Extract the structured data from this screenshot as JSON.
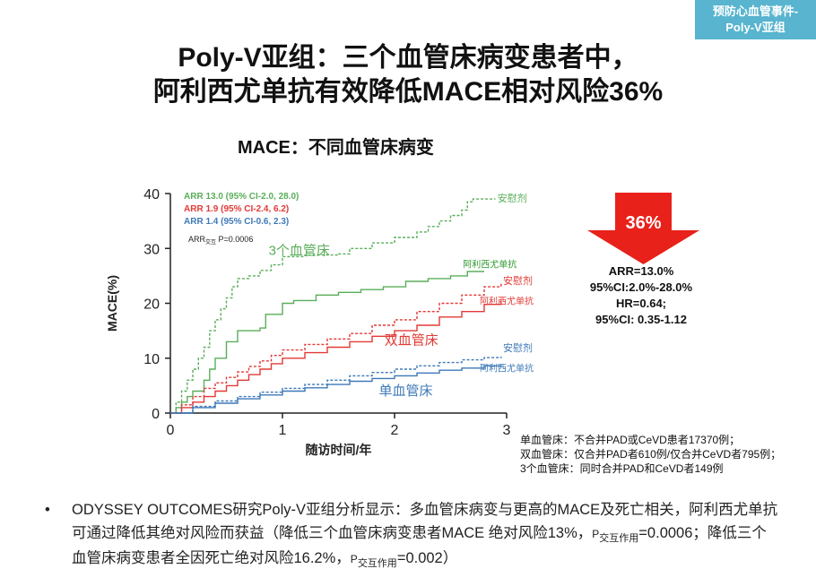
{
  "corner_tag": {
    "line1": "预防心血管事件-",
    "line2": "Poly-V亚组"
  },
  "title": {
    "line1": "Poly-V亚组：三个血管床病变患者中，",
    "line2": "阿利西尤单抗有效降低MACE相对风险36%"
  },
  "chart_title": "MACE：不同血管床病变",
  "chart_data": {
    "type": "line",
    "xlabel": "随访时间/年",
    "ylabel": "MACE(%)",
    "xlim": [
      0,
      3
    ],
    "ylim": [
      0,
      40
    ],
    "x_ticks": [
      "0",
      "1",
      "2",
      "3"
    ],
    "y_ticks": [
      "0",
      "10",
      "20",
      "30",
      "40"
    ],
    "annotations": [
      {
        "text": "ARR 13.0 (95% CI-2.0, 28.0)",
        "color": "#5aae5a"
      },
      {
        "text": "ARR 1.9 (95% CI-2.4, 6.2)",
        "color": "#e23a36"
      },
      {
        "text": "ARR 1.4 (95% CI-0.6, 2.3)",
        "color": "#3f79b8"
      }
    ],
    "interaction_note": {
      "main": "ARR",
      "sub": "交互",
      "rest": " P=0.0006"
    },
    "group_labels": [
      {
        "text": "3个血管床",
        "color": "#5aae5a",
        "x": 1.15,
        "y": 28.8
      },
      {
        "text": "双血管床",
        "color": "#e23a36",
        "x": 2.15,
        "y": 12.5
      },
      {
        "text": "单血管床",
        "color": "#3f79b8",
        "x": 2.1,
        "y": 3.3
      }
    ],
    "series": [
      {
        "name": "安慰剂",
        "group": "3个血管床",
        "color": "#5aae5a",
        "dashed": true,
        "label_color": "#5aae5a",
        "label_x": 3.05,
        "label_y": 38.5,
        "points": [
          [
            0,
            0
          ],
          [
            0.05,
            2
          ],
          [
            0.1,
            4
          ],
          [
            0.15,
            6
          ],
          [
            0.2,
            8
          ],
          [
            0.25,
            10
          ],
          [
            0.3,
            12
          ],
          [
            0.35,
            15
          ],
          [
            0.4,
            17
          ],
          [
            0.45,
            19
          ],
          [
            0.5,
            21
          ],
          [
            0.55,
            23
          ],
          [
            0.6,
            24.5
          ],
          [
            0.7,
            25
          ],
          [
            0.8,
            26
          ],
          [
            0.9,
            27
          ],
          [
            1.0,
            28.5
          ],
          [
            1.2,
            28.8
          ],
          [
            1.5,
            29
          ],
          [
            1.6,
            30
          ],
          [
            1.8,
            31
          ],
          [
            2.0,
            32
          ],
          [
            2.2,
            33
          ],
          [
            2.3,
            34
          ],
          [
            2.4,
            35
          ],
          [
            2.5,
            36
          ],
          [
            2.6,
            37
          ],
          [
            2.65,
            38.5
          ],
          [
            2.7,
            39
          ],
          [
            2.9,
            39
          ]
        ]
      },
      {
        "name": "阿利西尤单抗",
        "group": "3个血管床",
        "color": "#5aae5a",
        "dashed": false,
        "label_color": "#2e9a2e",
        "label_x": 2.85,
        "label_y": 26.5,
        "points": [
          [
            0,
            0
          ],
          [
            0.05,
            1
          ],
          [
            0.1,
            2
          ],
          [
            0.15,
            3
          ],
          [
            0.2,
            4
          ],
          [
            0.3,
            6
          ],
          [
            0.35,
            8
          ],
          [
            0.4,
            10
          ],
          [
            0.5,
            13
          ],
          [
            0.6,
            15
          ],
          [
            0.8,
            15.5
          ],
          [
            0.85,
            18
          ],
          [
            1.0,
            20
          ],
          [
            1.1,
            20.5
          ],
          [
            1.3,
            21.5
          ],
          [
            1.5,
            22
          ],
          [
            1.7,
            22.5
          ],
          [
            1.9,
            23
          ],
          [
            2.1,
            24
          ],
          [
            2.3,
            24.5
          ],
          [
            2.5,
            25
          ],
          [
            2.65,
            25.8
          ],
          [
            2.8,
            25.8
          ]
        ]
      },
      {
        "name": "安慰剂",
        "group": "双血管床",
        "color": "#e23a36",
        "dashed": true,
        "label_color": "#e23a36",
        "label_x": 3.1,
        "label_y": 23.5,
        "points": [
          [
            0,
            0
          ],
          [
            0.1,
            1.5
          ],
          [
            0.2,
            3
          ],
          [
            0.3,
            4.5
          ],
          [
            0.4,
            5.5
          ],
          [
            0.5,
            6.5
          ],
          [
            0.6,
            7.5
          ],
          [
            0.7,
            8.5
          ],
          [
            0.8,
            9.5
          ],
          [
            0.9,
            10.5
          ],
          [
            1.0,
            11.5
          ],
          [
            1.2,
            12.5
          ],
          [
            1.4,
            13.5
          ],
          [
            1.6,
            14.5
          ],
          [
            1.8,
            16
          ],
          [
            2.0,
            17
          ],
          [
            2.2,
            18.5
          ],
          [
            2.4,
            20
          ],
          [
            2.6,
            21.5
          ],
          [
            2.8,
            23
          ],
          [
            2.95,
            23.8
          ]
        ]
      },
      {
        "name": "阿利西尤单抗",
        "group": "双血管床",
        "color": "#e23a36",
        "dashed": false,
        "label_color": "#e23a36",
        "label_x": 3.0,
        "label_y": 19.8,
        "points": [
          [
            0,
            0
          ],
          [
            0.1,
            1
          ],
          [
            0.2,
            2
          ],
          [
            0.3,
            3
          ],
          [
            0.4,
            4
          ],
          [
            0.5,
            5
          ],
          [
            0.6,
            6
          ],
          [
            0.7,
            7
          ],
          [
            0.8,
            8
          ],
          [
            0.9,
            9
          ],
          [
            1.0,
            10
          ],
          [
            1.2,
            11
          ],
          [
            1.4,
            12
          ],
          [
            1.6,
            13
          ],
          [
            1.8,
            14
          ],
          [
            2.0,
            15
          ],
          [
            2.2,
            16
          ],
          [
            2.4,
            17.5
          ],
          [
            2.6,
            18.5
          ],
          [
            2.8,
            19.8
          ],
          [
            2.95,
            20.5
          ]
        ]
      },
      {
        "name": "安慰剂",
        "group": "单血管床",
        "color": "#3f79b8",
        "dashed": true,
        "label_color": "#3f79b8",
        "label_x": 3.1,
        "label_y": 11.3,
        "points": [
          [
            0,
            0
          ],
          [
            0.2,
            1.2
          ],
          [
            0.4,
            2.2
          ],
          [
            0.6,
            3.0
          ],
          [
            0.8,
            3.8
          ],
          [
            1.0,
            4.5
          ],
          [
            1.2,
            5.2
          ],
          [
            1.4,
            6.0
          ],
          [
            1.6,
            6.8
          ],
          [
            1.8,
            7.4
          ],
          [
            2.0,
            8.0
          ],
          [
            2.2,
            8.6
          ],
          [
            2.4,
            9.2
          ],
          [
            2.6,
            9.7
          ],
          [
            2.8,
            10.1
          ],
          [
            2.95,
            10.3
          ]
        ]
      },
      {
        "name": "阿利西尤单抗",
        "group": "单血管床",
        "color": "#3f79b8",
        "dashed": false,
        "label_color": "#3f79b8",
        "label_x": 3.0,
        "label_y": 7.6,
        "points": [
          [
            0,
            0
          ],
          [
            0.2,
            1.0
          ],
          [
            0.4,
            1.8
          ],
          [
            0.6,
            2.6
          ],
          [
            0.8,
            3.3
          ],
          [
            1.0,
            4.0
          ],
          [
            1.2,
            4.6
          ],
          [
            1.4,
            5.2
          ],
          [
            1.6,
            5.8
          ],
          [
            1.8,
            6.3
          ],
          [
            2.0,
            6.8
          ],
          [
            2.2,
            7.3
          ],
          [
            2.4,
            7.8
          ],
          [
            2.6,
            8.2
          ],
          [
            2.8,
            8.6
          ],
          [
            2.95,
            8.8
          ]
        ]
      }
    ]
  },
  "arrow": {
    "label": "36%",
    "color": "#e8211a"
  },
  "stats": [
    "ARR=13.0%",
    "95%CI:2.0%-28.0%",
    "HR=0.64;",
    "95%CI: 0.35-1.12"
  ],
  "footnotes": [
    "单血管床：不合并PAD或CeVD患者17370例；",
    "双血管床：仅合并PAD者610例/仅合并CeVD者795例；",
    "3个血管床：同时合并PAD和CeVD者149例"
  ],
  "bullet": {
    "marker": "•",
    "part1": "ODYSSEY OUTCOMES研究Poly-V亚组分析显示：多血管床病变与更高的MACE及死亡相关，阿利西尤单抗可通过降低其绝对风险而获益（降低三个血管床病变患者MACE 绝对风险13%，",
    "p1_letter": "P",
    "p1_sub": "交互作用",
    "part2": "=0.0006；降低三个血管床病变患者全因死亡绝对风险16.2%，",
    "p2_letter": "P",
    "p2_sub": "交互作用",
    "part3": "=0.002）"
  }
}
